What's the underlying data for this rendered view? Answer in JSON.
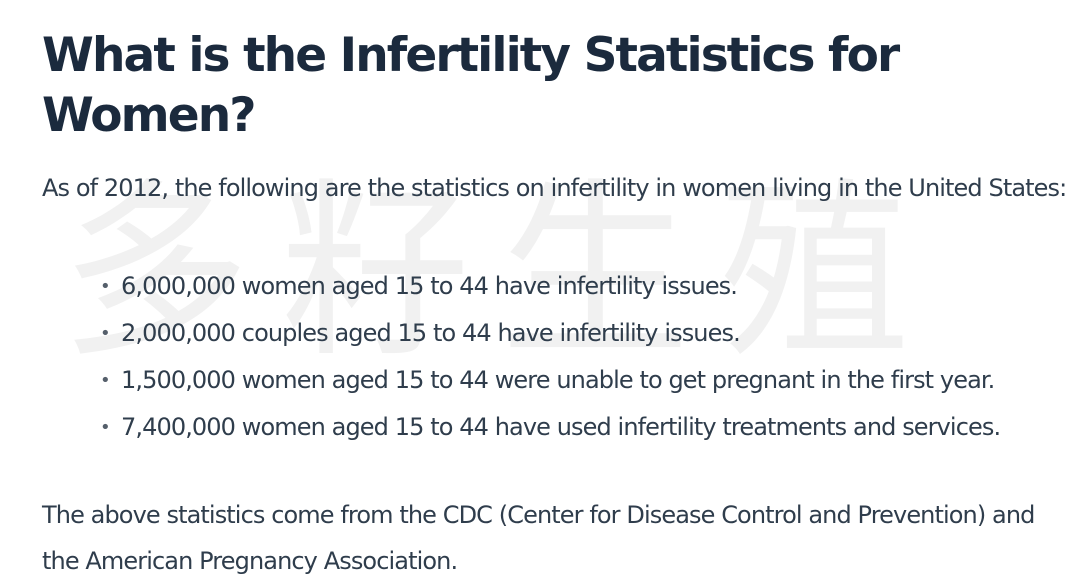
{
  "watermark": "多籽生殖",
  "heading": "What is the Infertility Statistics for Women?",
  "intro": "As of 2012, the following are the statistics on infertility in women living in the United States:",
  "stats": [
    "6,000,000 women aged 15 to 44 have infertility issues.",
    "2,000,000 couples aged 15 to 44 have infertility issues.",
    "1,500,000 women aged 15 to 44 were unable to get pregnant in the first year.",
    "7,400,000 women aged 15 to 44 have used infertility treatments and services."
  ],
  "source_note": "The above statistics come from the CDC (Center for Disease Control and Prevention) and the American Pregnancy Association.",
  "colors": {
    "heading": "#1b2a3d",
    "body_text": "#2f3d4c",
    "watermark": "#f1f1f1"
  }
}
